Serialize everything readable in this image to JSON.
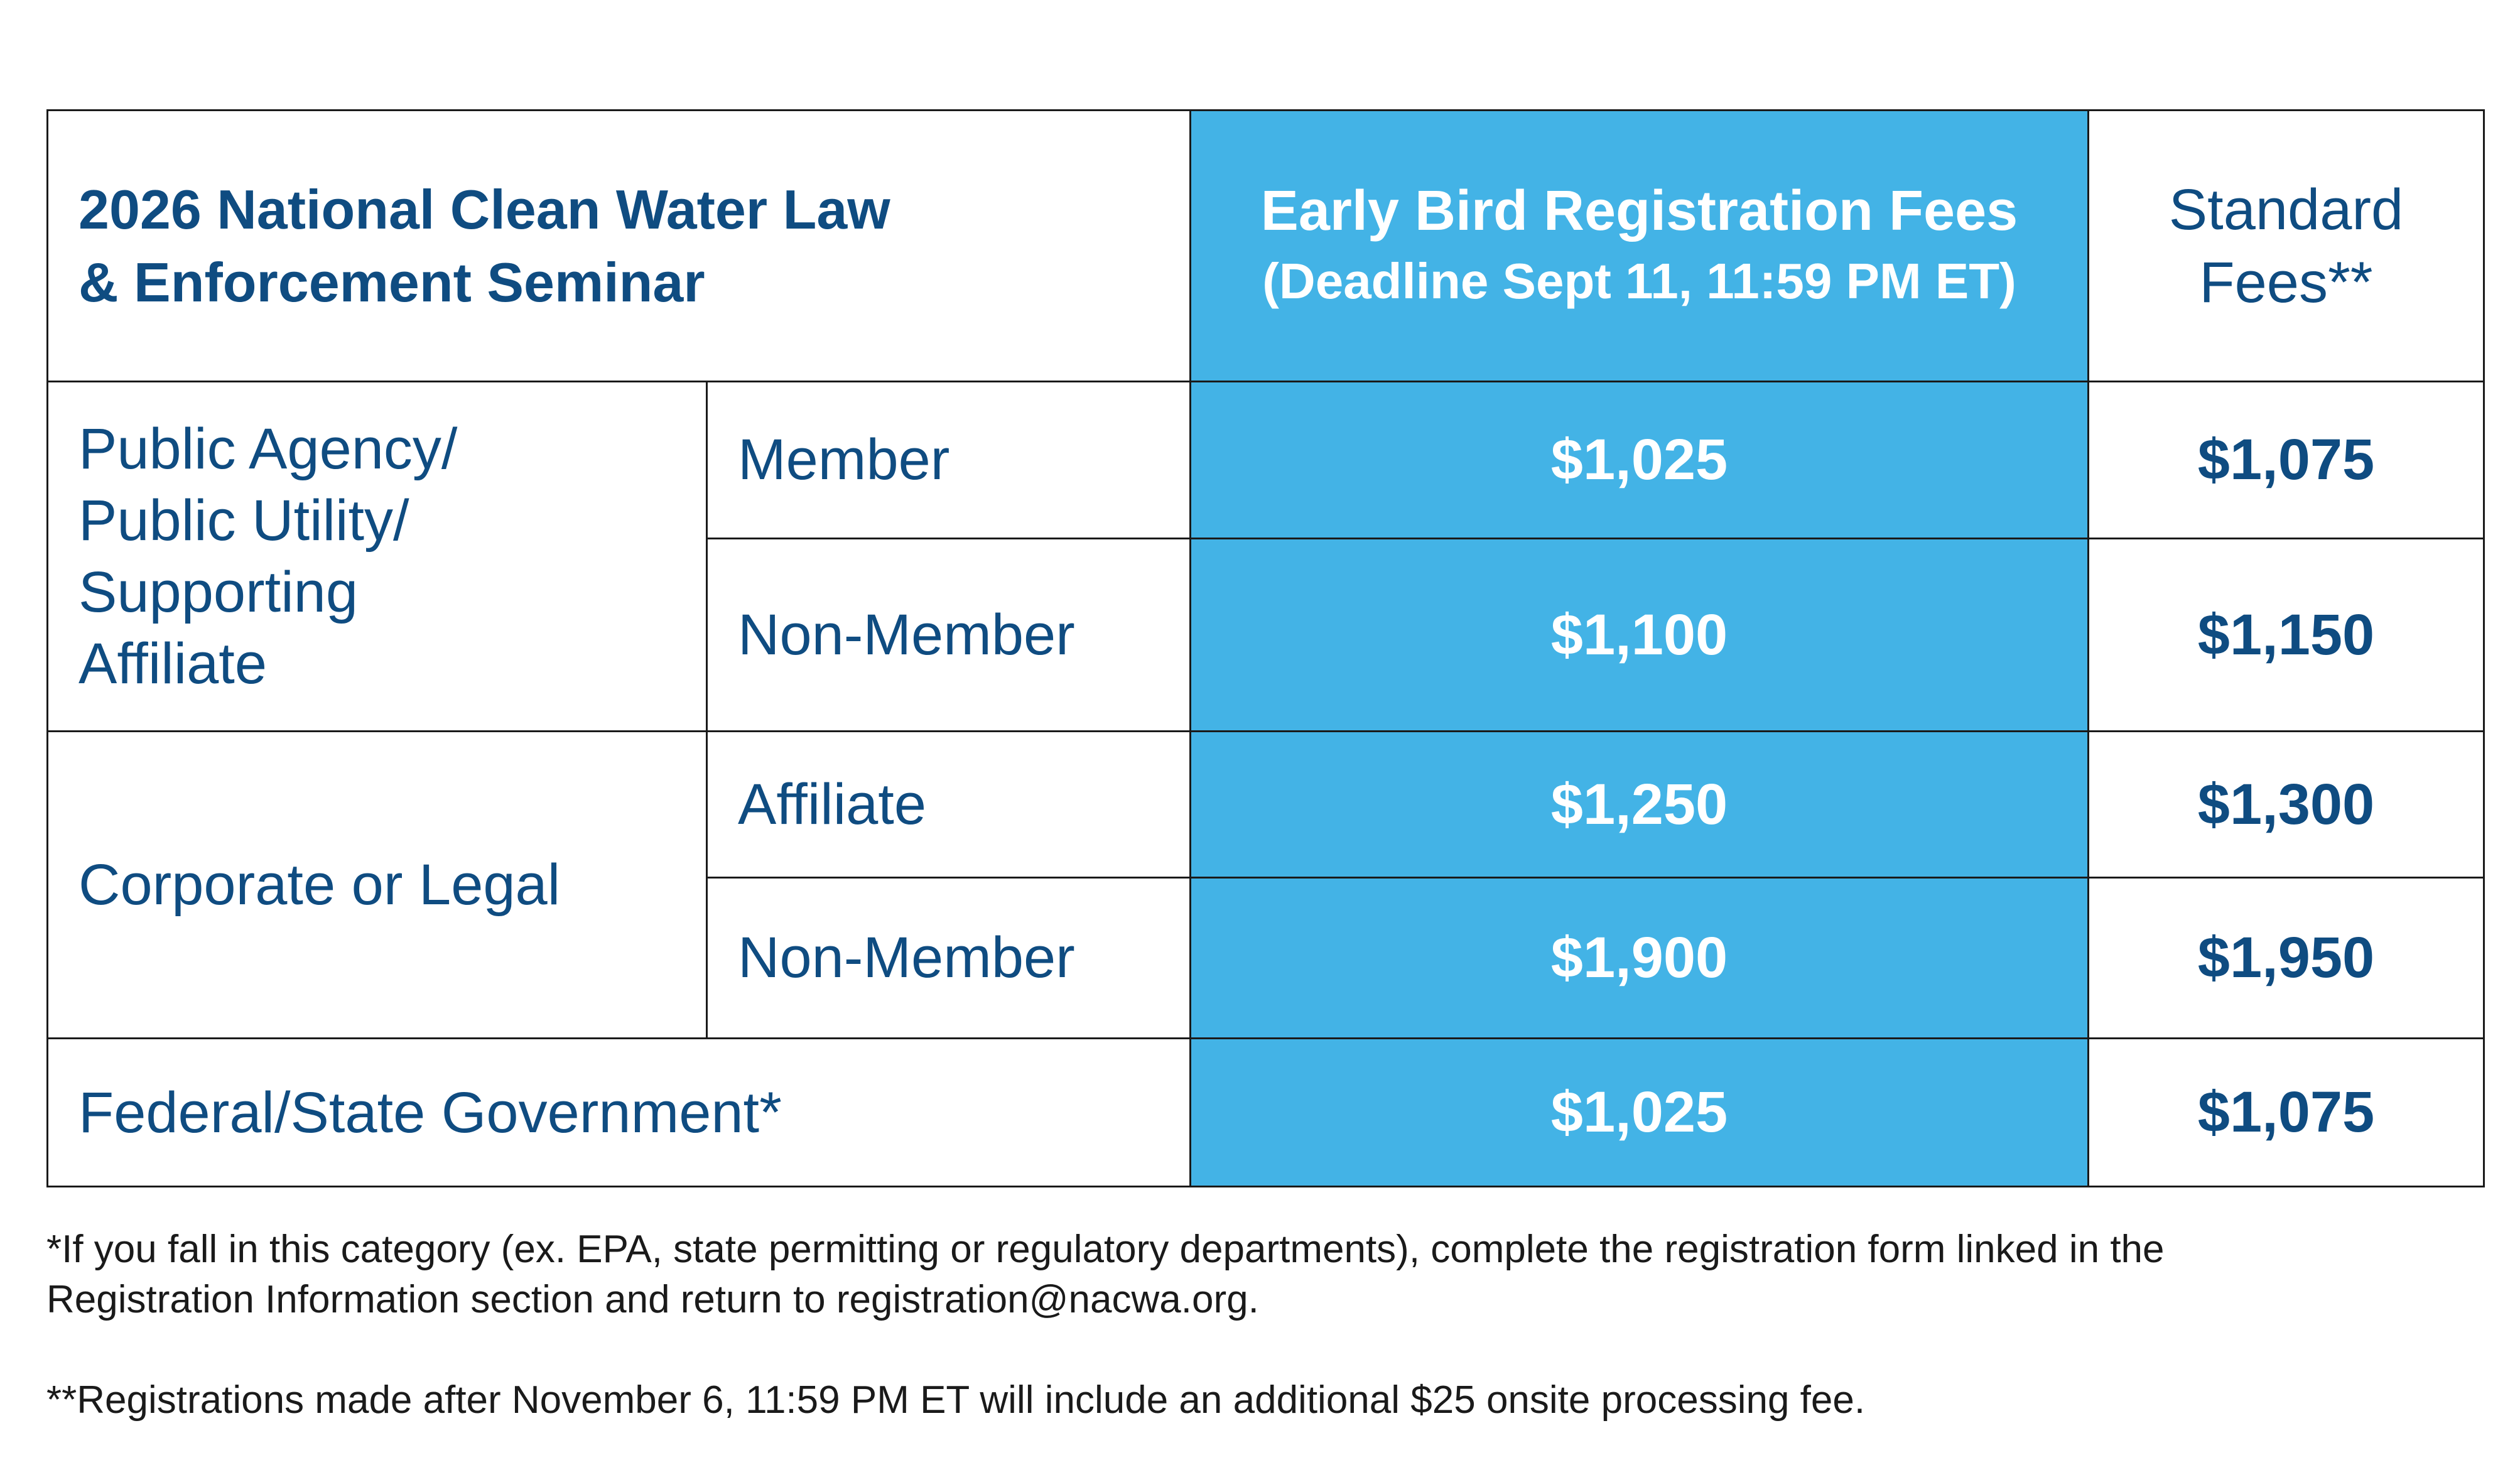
{
  "table": {
    "title_line1": "2026 National Clean Water Law",
    "title_line2": "& Enforcement Seminar",
    "early_header_line1": "Early Bird Registration Fees",
    "early_header_line2": "(Deadline Sept 11, 11:59 PM ET)",
    "standard_header_line1": "Standard",
    "standard_header_line2": "Fees**",
    "groups": [
      {
        "category_lines": [
          "Public Agency/",
          "Public Utility/",
          "Supporting",
          "Affiliate"
        ],
        "rows": [
          {
            "type": "Member",
            "early": "$1,025",
            "standard": "$1,075"
          },
          {
            "type": "Non-Member",
            "early": "$1,100",
            "standard": "$1,150"
          }
        ]
      },
      {
        "category_lines": [
          "Corporate or Legal"
        ],
        "rows": [
          {
            "type": "Affiliate",
            "early": "$1,250",
            "standard": "$1,300"
          },
          {
            "type": "Non-Member",
            "early": "$1,900",
            "standard": "$1,950"
          }
        ]
      },
      {
        "category_lines": [
          "Federal/State Government*"
        ],
        "rows": [
          {
            "type": "",
            "early": "$1,025",
            "standard": "$1,075"
          }
        ]
      }
    ]
  },
  "notes": {
    "note1_line1": "*If you fall in this category (ex. EPA, state permitting or regulatory departments), complete the registration form linked in the",
    "note1_line2": "Registration Information section and return to registration@nacwa.org.",
    "note2": "**Registrations made after November 6, 11:59 PM ET will include an additional $25 onsite processing fee."
  },
  "colors": {
    "accent_blue": "#43b3e6",
    "text_navy": "#0f4c81",
    "border": "#1a1a1a"
  }
}
